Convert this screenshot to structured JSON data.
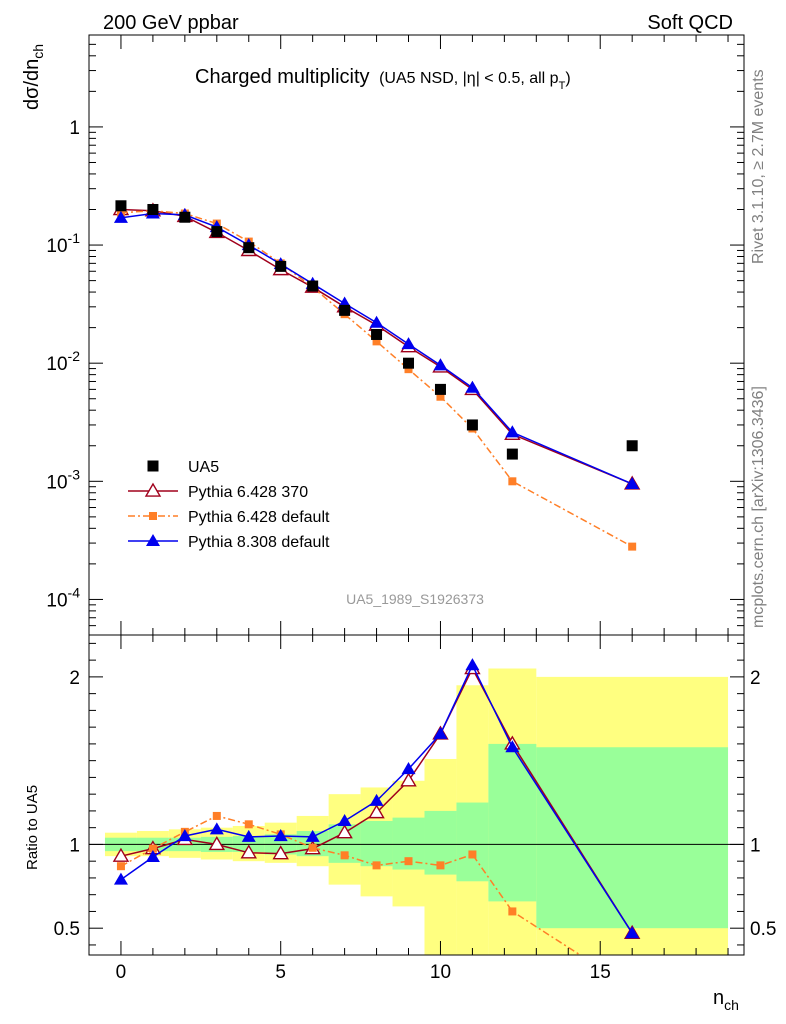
{
  "header": {
    "left": "200 GeV ppbar",
    "right": "Soft QCD"
  },
  "side_labels": {
    "rivet": "Rivet 3.1.10, ≥ 2.7M events",
    "mcplots": "mcplots.cern.ch [arXiv:1306.3436]"
  },
  "colors": {
    "data": "#000000",
    "p6_370": "#a0001c",
    "p6_default": "#ff7f27",
    "p8": "#0000ee",
    "band_stat": "#99ff99",
    "band_total": "#ffff80"
  },
  "chart_data": [
    {
      "type": "scatter",
      "panel": "main",
      "title": "Charged multiplicity",
      "subtitle": "(UA5 NSD, |η| < 0.5, all p",
      "subtitle_sub": "T",
      "subtitle_end": ")",
      "ylabel": "dσ/dn",
      "ylabel_sub": "ch",
      "yscale": "log",
      "ylim": [
        5e-05,
        6
      ],
      "xlim": [
        -1,
        19.5
      ],
      "y_ticks": [
        {
          "value": 1,
          "label": "1"
        },
        {
          "value": 0.1,
          "label": "10",
          "exp": "-1"
        },
        {
          "value": 0.01,
          "label": "10",
          "exp": "-2"
        },
        {
          "value": 0.001,
          "label": "10",
          "exp": "-3"
        },
        {
          "value": 0.0001,
          "label": "10",
          "exp": "-4"
        }
      ],
      "watermark": "UA5_1989_S1926373",
      "legend_position": "lower-left",
      "series": [
        {
          "name": "UA5",
          "style": "data",
          "color": "#000000",
          "x": [
            0,
            1,
            2,
            3,
            4,
            5,
            6,
            7,
            8,
            9,
            10,
            11,
            12.25,
            16
          ],
          "y": [
            0.215,
            0.2,
            0.172,
            0.13,
            0.095,
            0.066,
            0.045,
            0.028,
            0.0175,
            0.01,
            0.006,
            0.003,
            0.0017,
            0.002
          ]
        },
        {
          "name": "Pythia 6.428 370",
          "style": "open-triangle-solid",
          "color": "#a0001c",
          "x": [
            0,
            1,
            2,
            3,
            4,
            5,
            6,
            7,
            8,
            9,
            10,
            11,
            12.25,
            16
          ],
          "y": [
            0.2,
            0.195,
            0.175,
            0.128,
            0.09,
            0.062,
            0.044,
            0.03,
            0.021,
            0.0138,
            0.0093,
            0.006,
            0.0025,
            0.00095
          ]
        },
        {
          "name": "Pythia 6.428 default",
          "style": "square-dashdot",
          "color": "#ff7f27",
          "x": [
            0,
            1,
            2,
            3,
            4,
            5,
            6,
            7,
            8,
            9,
            10,
            11,
            12.25,
            16
          ],
          "y": [
            0.188,
            0.195,
            0.185,
            0.152,
            0.107,
            0.07,
            0.044,
            0.026,
            0.0153,
            0.0089,
            0.0052,
            0.0028,
            0.001,
            0.00028
          ]
        },
        {
          "name": "Pythia 8.308 default",
          "style": "filled-triangle-solid",
          "color": "#0000ee",
          "x": [
            0,
            1,
            2,
            3,
            4,
            5,
            6,
            7,
            8,
            9,
            10,
            11,
            12.25,
            16
          ],
          "y": [
            0.17,
            0.185,
            0.18,
            0.142,
            0.1,
            0.069,
            0.047,
            0.032,
            0.022,
            0.0145,
            0.0096,
            0.0062,
            0.0026,
            0.00095
          ]
        }
      ]
    },
    {
      "type": "line",
      "panel": "ratio",
      "ylabel": "Ratio to UA5",
      "xlabel": "n",
      "xlabel_sub": "ch",
      "xlim": [
        -1,
        19.5
      ],
      "ylim": [
        0.34,
        2.25
      ],
      "x_ticks": [
        0,
        5,
        10,
        15
      ],
      "y_ticks": [
        {
          "value": 0.5,
          "label": "0.5"
        },
        {
          "value": 1,
          "label": "1"
        },
        {
          "value": 2,
          "label": "2"
        }
      ],
      "reference_line": 1,
      "bands": {
        "edges": [
          -0.5,
          0.5,
          1.5,
          2.5,
          3.5,
          4.5,
          5.5,
          6.5,
          7.5,
          8.5,
          9.5,
          10.5,
          11.5,
          13,
          19
        ],
        "stat_lo": [
          0.96,
          0.96,
          0.96,
          0.955,
          0.955,
          0.94,
          0.93,
          0.89,
          0.87,
          0.85,
          0.82,
          0.78,
          0.66,
          0.5
        ],
        "stat_hi": [
          1.04,
          1.04,
          1.04,
          1.045,
          1.05,
          1.06,
          1.08,
          1.12,
          1.14,
          1.16,
          1.2,
          1.25,
          1.6,
          1.58
        ],
        "total_lo": [
          0.93,
          0.93,
          0.92,
          0.91,
          0.9,
          0.89,
          0.87,
          0.76,
          0.69,
          0.63,
          0.34,
          0.34,
          0.34,
          0.34
        ],
        "total_hi": [
          1.07,
          1.08,
          1.09,
          1.1,
          1.11,
          1.13,
          1.17,
          1.3,
          1.34,
          1.38,
          1.51,
          1.95,
          2.05,
          2.0
        ]
      },
      "series": [
        {
          "name": "Pythia 6.428 370",
          "style": "open-triangle-solid",
          "color": "#a0001c",
          "x": [
            0,
            1,
            2,
            3,
            4,
            5,
            6,
            7,
            8,
            9,
            10,
            11,
            12.25,
            16
          ],
          "y": [
            0.93,
            0.975,
            1.03,
            1.0,
            0.95,
            0.945,
            0.975,
            1.07,
            1.19,
            1.38,
            1.66,
            2.05,
            1.6,
            0.47
          ]
        },
        {
          "name": "Pythia 6.428 default",
          "style": "square-dashdot",
          "color": "#ff7f27",
          "x": [
            0,
            1,
            2,
            3,
            4,
            5,
            6,
            7,
            8,
            9,
            10,
            11,
            12.25,
            16
          ],
          "y": [
            0.87,
            0.975,
            1.075,
            1.17,
            1.12,
            1.06,
            0.98,
            0.935,
            0.875,
            0.9,
            0.875,
            0.94,
            0.6,
            0.14
          ]
        },
        {
          "name": "Pythia 8.308 default",
          "style": "filled-triangle-solid",
          "color": "#0000ee",
          "x": [
            0,
            1,
            2,
            3,
            4,
            5,
            6,
            7,
            8,
            9,
            10,
            11,
            12.25,
            16
          ],
          "y": [
            0.79,
            0.925,
            1.05,
            1.09,
            1.045,
            1.05,
            1.045,
            1.14,
            1.26,
            1.45,
            1.66,
            2.07,
            1.58,
            0.47
          ]
        }
      ]
    }
  ]
}
